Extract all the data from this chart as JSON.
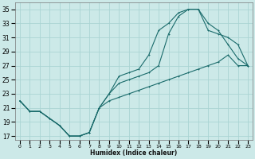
{
  "xlabel": "Humidex (Indice chaleur)",
  "bg_color": "#cce9e8",
  "grid_color": "#aad4d3",
  "line_color": "#1a6b6b",
  "xlim": [
    -0.5,
    23.5
  ],
  "ylim": [
    16.5,
    36
  ],
  "xticks": [
    0,
    1,
    2,
    3,
    4,
    5,
    6,
    7,
    8,
    9,
    10,
    11,
    12,
    13,
    14,
    15,
    16,
    17,
    18,
    19,
    20,
    21,
    22,
    23
  ],
  "yticks": [
    17,
    19,
    21,
    23,
    25,
    27,
    29,
    31,
    33,
    35
  ],
  "line1_x": [
    0,
    1,
    2,
    3,
    4,
    5,
    6,
    7,
    8,
    9,
    10,
    11,
    12,
    13,
    14,
    15,
    16,
    17,
    18,
    19,
    20,
    21,
    22,
    23
  ],
  "line1_y": [
    22,
    20.5,
    20.5,
    19.5,
    18.5,
    17,
    17,
    17.5,
    21,
    23,
    25.5,
    26,
    26.5,
    28.5,
    32,
    33,
    34.5,
    35,
    35,
    33,
    32,
    30,
    28,
    27
  ],
  "line2_x": [
    0,
    1,
    2,
    3,
    4,
    5,
    6,
    7,
    8,
    9,
    10,
    11,
    12,
    13,
    14,
    15,
    16,
    17,
    18,
    19,
    20,
    21,
    22,
    23
  ],
  "line2_y": [
    22,
    20.5,
    20.5,
    19.5,
    18.5,
    17,
    17,
    17.5,
    21,
    23,
    24.5,
    25,
    25.5,
    26,
    27,
    31.5,
    34,
    35,
    35,
    32,
    31.5,
    31,
    30,
    27
  ],
  "line3_x": [
    0,
    1,
    2,
    3,
    4,
    5,
    6,
    7,
    8,
    9,
    10,
    11,
    12,
    13,
    14,
    15,
    16,
    17,
    18,
    19,
    20,
    21,
    22,
    23
  ],
  "line3_y": [
    22,
    20.5,
    20.5,
    19.5,
    18.5,
    17,
    17,
    17.5,
    21,
    22,
    22.5,
    23,
    23.5,
    24,
    24.5,
    25,
    25.5,
    26,
    26.5,
    27,
    27.5,
    28.5,
    27,
    27
  ]
}
